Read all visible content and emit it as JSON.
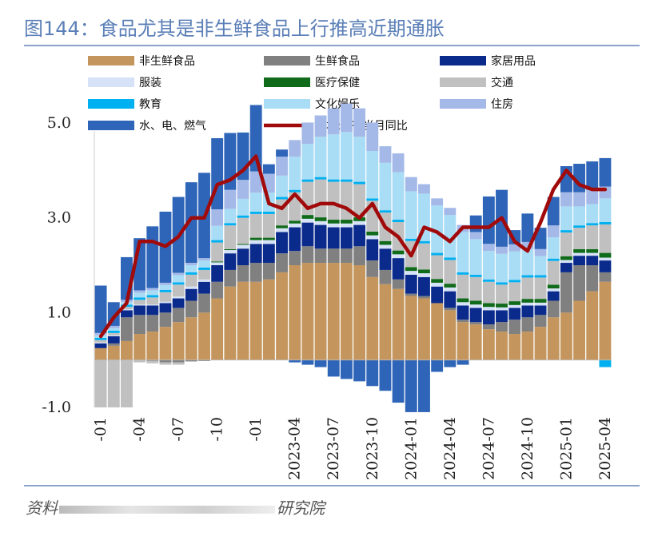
{
  "title": "图144：食品尤其是非生鲜食品上行推高近期通胀",
  "source": {
    "prefix": "资料",
    "suffix": "研究院"
  },
  "chart_data": {
    "type": "bar",
    "stacked": true,
    "ylim": [
      -1.0,
      5.0
    ],
    "yticks": [
      "5.0",
      "3.0",
      "1.0",
      "-1.0"
    ],
    "ytick_values": [
      5.0,
      3.0,
      1.0,
      -1.0
    ],
    "x": [
      "2022-01",
      "2022-02",
      "2022-03",
      "2022-04",
      "2022-05",
      "2022-06",
      "2022-07",
      "2022-08",
      "2022-09",
      "2022-10",
      "2022-11",
      "2022-12",
      "2023-01",
      "2023-02",
      "2023-03",
      "2023-04",
      "2023-05",
      "2023-06",
      "2023-07",
      "2023-08",
      "2023-09",
      "2023-10",
      "2023-11",
      "2023-12",
      "2024-01",
      "2024-02",
      "2024-03",
      "2024-04",
      "2024-05",
      "2024-06",
      "2024-07",
      "2024-08",
      "2024-09",
      "2024-10",
      "2024-11",
      "2024-12",
      "2025-01",
      "2025-02",
      "2025-03",
      "2025-04"
    ],
    "xticks": [
      {
        "i": 0,
        "label": "-01"
      },
      {
        "i": 3,
        "label": "-04"
      },
      {
        "i": 6,
        "label": "-07"
      },
      {
        "i": 9,
        "label": "-10"
      },
      {
        "i": 12,
        "label": "-01"
      },
      {
        "i": 15,
        "label": "2023-04"
      },
      {
        "i": 18,
        "label": "2023-07"
      },
      {
        "i": 21,
        "label": "2023-10"
      },
      {
        "i": 24,
        "label": "2024-01"
      },
      {
        "i": 27,
        "label": "2024-04"
      },
      {
        "i": 30,
        "label": "2024-07"
      },
      {
        "i": 33,
        "label": "2024-10"
      },
      {
        "i": 36,
        "label": "2025-01"
      },
      {
        "i": 39,
        "label": "2025-04"
      }
    ],
    "legend_position": "top",
    "series": [
      {
        "name": "非生鲜食品",
        "color": "#c4965e",
        "type": "bar",
        "values": [
          0.25,
          0.3,
          0.4,
          0.55,
          0.6,
          0.7,
          0.8,
          0.9,
          1.0,
          1.3,
          1.55,
          1.65,
          1.65,
          1.7,
          1.85,
          2.0,
          2.05,
          2.05,
          2.05,
          2.05,
          2.0,
          1.75,
          1.6,
          1.5,
          1.35,
          1.3,
          1.2,
          1.05,
          0.8,
          0.75,
          0.65,
          0.6,
          0.55,
          0.6,
          0.7,
          0.9,
          1.0,
          1.25,
          1.45,
          1.65
        ]
      },
      {
        "name": "生鲜食品",
        "color": "#808080",
        "type": "bar",
        "values": [
          0.0,
          0.05,
          0.5,
          0.4,
          0.35,
          0.3,
          0.3,
          0.35,
          0.4,
          0.35,
          0.35,
          0.35,
          0.4,
          0.35,
          0.4,
          0.3,
          0.35,
          0.3,
          0.3,
          0.3,
          0.4,
          0.35,
          0.3,
          0.2,
          0.05,
          0.05,
          0.0,
          0.05,
          0.05,
          0.05,
          0.1,
          0.2,
          0.3,
          0.3,
          0.25,
          0.35,
          0.85,
          0.75,
          0.55,
          0.2
        ]
      },
      {
        "name": "家居用品",
        "color": "#0b2b8c",
        "type": "bar",
        "values": [
          0.1,
          0.15,
          0.15,
          0.2,
          0.2,
          0.2,
          0.2,
          0.25,
          0.25,
          0.35,
          0.35,
          0.35,
          0.4,
          0.4,
          0.45,
          0.5,
          0.5,
          0.5,
          0.45,
          0.45,
          0.45,
          0.45,
          0.45,
          0.45,
          0.4,
          0.4,
          0.35,
          0.35,
          0.3,
          0.3,
          0.3,
          0.25,
          0.25,
          0.25,
          0.2,
          0.2,
          0.2,
          0.2,
          0.2,
          0.25
        ]
      },
      {
        "name": "服装",
        "color": "#d6e2f7",
        "type": "bar",
        "values": [
          0.02,
          0.02,
          0.02,
          0.02,
          0.02,
          0.03,
          0.04,
          0.05,
          0.05,
          0.06,
          0.07,
          0.08,
          0.08,
          0.08,
          0.08,
          0.08,
          0.08,
          0.08,
          0.08,
          0.08,
          0.08,
          0.08,
          0.08,
          0.08,
          0.08,
          0.08,
          0.08,
          0.08,
          0.07,
          0.07,
          0.07,
          0.06,
          0.06,
          0.06,
          0.06,
          0.06,
          0.06,
          0.06,
          0.06,
          0.06
        ]
      },
      {
        "name": "医疗保健",
        "color": "#0f6b1a",
        "type": "bar",
        "values": [
          0.0,
          0.0,
          0.0,
          0.0,
          0.0,
          0.0,
          0.0,
          0.0,
          0.0,
          0.02,
          0.02,
          0.02,
          0.05,
          0.05,
          0.06,
          0.06,
          0.08,
          0.08,
          0.08,
          0.08,
          0.08,
          0.08,
          0.08,
          0.08,
          0.08,
          0.08,
          0.08,
          0.08,
          0.08,
          0.08,
          0.08,
          0.08,
          0.08,
          0.08,
          0.08,
          0.08,
          0.08,
          0.08,
          0.08,
          0.1
        ]
      },
      {
        "name": "交通",
        "color": "#c0c0c0",
        "type": "bar",
        "values": [
          0.05,
          0.05,
          0.05,
          0.1,
          0.15,
          0.2,
          0.25,
          0.25,
          0.2,
          0.4,
          0.5,
          0.55,
          0.5,
          0.5,
          0.55,
          0.6,
          0.7,
          0.8,
          0.8,
          0.8,
          0.7,
          0.65,
          0.6,
          0.6,
          0.55,
          0.55,
          0.5,
          0.5,
          0.5,
          0.5,
          0.45,
          0.4,
          0.4,
          0.45,
          0.45,
          0.5,
          0.5,
          0.45,
          0.5,
          0.6
        ]
      },
      {
        "name": "教育",
        "color": "#00b0f0",
        "type": "bar",
        "values": [
          0.05,
          0.05,
          0.05,
          0.05,
          0.05,
          0.05,
          0.05,
          0.05,
          0.05,
          0.05,
          0.05,
          0.05,
          0.05,
          0.05,
          0.05,
          0.05,
          0.05,
          0.05,
          0.05,
          0.05,
          0.05,
          0.05,
          0.05,
          0.05,
          0.05,
          0.05,
          0.05,
          0.05,
          0.05,
          0.05,
          0.05,
          0.05,
          0.05,
          0.05,
          0.05,
          0.05,
          0.05,
          0.05,
          0.05,
          0.05
        ]
      },
      {
        "name": "文化娱乐",
        "color": "#a9dcf5",
        "type": "bar",
        "values": [
          0.05,
          0.05,
          0.05,
          0.1,
          0.1,
          0.1,
          0.15,
          0.15,
          0.15,
          0.3,
          0.3,
          0.35,
          0.4,
          0.4,
          0.45,
          0.7,
          0.75,
          0.85,
          0.95,
          1.0,
          0.95,
          1.0,
          1.0,
          1.0,
          1.0,
          1.0,
          1.0,
          0.9,
          0.85,
          0.75,
          0.6,
          0.6,
          0.6,
          0.55,
          0.4,
          0.45,
          0.5,
          0.4,
          0.4,
          0.5
        ]
      },
      {
        "name": "住房",
        "color": "#a4b9e8",
        "type": "bar",
        "values": [
          0.05,
          0.05,
          0.05,
          0.05,
          0.05,
          0.05,
          0.05,
          0.05,
          0.05,
          0.35,
          0.4,
          0.4,
          0.45,
          0.4,
          0.4,
          0.35,
          0.45,
          0.45,
          0.55,
          0.6,
          0.6,
          0.6,
          0.35,
          0.4,
          0.3,
          0.2,
          0.15,
          0.15,
          0.15,
          0.15,
          0.15,
          0.15,
          0.15,
          0.15,
          0.15,
          0.25,
          0.3,
          0.3,
          0.3,
          0.25
        ]
      },
      {
        "name": "水、电、燃气",
        "color": "#2e65b8",
        "type": "bar",
        "values": [
          1.0,
          0.5,
          0.9,
          1.1,
          1.3,
          1.5,
          1.6,
          1.7,
          1.8,
          1.5,
          1.2,
          1.0,
          1.4,
          0.2,
          0.15,
          0.0,
          -0.05,
          -0.05,
          -0.05,
          -0.05,
          -0.05,
          -0.05,
          0.0,
          0.0,
          0.0,
          0.0,
          0.0,
          0.0,
          0.0,
          0.35,
          1.0,
          1.2,
          0.3,
          0.6,
          0.45,
          0.6,
          0.55,
          0.6,
          0.6,
          0.6
        ]
      },
      {
        "name": "日本:CPI:当月同比",
        "color": "#a10a0a",
        "type": "line",
        "values": [
          0.5,
          0.9,
          1.2,
          2.5,
          2.5,
          2.4,
          2.6,
          3.0,
          3.0,
          3.7,
          3.8,
          4.0,
          4.3,
          3.3,
          3.2,
          3.5,
          3.2,
          3.3,
          3.3,
          3.2,
          3.0,
          3.3,
          2.8,
          2.6,
          2.2,
          2.8,
          2.7,
          2.5,
          2.8,
          2.8,
          2.8,
          3.0,
          2.5,
          2.3,
          2.9,
          3.6,
          4.0,
          3.7,
          3.6,
          3.6
        ]
      }
    ],
    "negatives": {
      "生鲜食品": [
        0.0,
        0.0,
        0.0,
        0.0,
        -0.02,
        -0.05,
        -0.05,
        -0.03,
        -0.02,
        0,
        0,
        0,
        0,
        0,
        0,
        0,
        0,
        0,
        0,
        0,
        0,
        0,
        0,
        0,
        0,
        0,
        0,
        0,
        0,
        0,
        0,
        0,
        0,
        0,
        0,
        0,
        0,
        0,
        0,
        0
      ],
      "交通": [
        -1.0,
        -1.0,
        -1.0,
        -0.05,
        -0.05,
        -0.05,
        -0.05,
        0,
        0,
        0,
        0,
        0,
        0,
        0,
        0,
        0,
        0,
        0,
        0,
        0,
        0,
        0,
        0,
        0,
        0,
        0,
        0,
        0,
        0,
        0,
        0,
        0,
        0,
        0,
        0,
        0,
        0,
        0,
        0,
        0
      ],
      "水、电、燃气": [
        0,
        0,
        0,
        0,
        0,
        0,
        0,
        0,
        0,
        0,
        0,
        0,
        0,
        0,
        0,
        -0.05,
        -0.1,
        -0.15,
        -0.35,
        -0.4,
        -0.45,
        -0.55,
        -0.65,
        -0.9,
        -1.1,
        -1.1,
        -0.25,
        -0.15,
        -0.1,
        0,
        0,
        0,
        0,
        0,
        0,
        0,
        0,
        0,
        0,
        0
      ],
      "教育": [
        0,
        0,
        0,
        0,
        0,
        0,
        0,
        0,
        0,
        0,
        0,
        0,
        0,
        0,
        0,
        0,
        0,
        0,
        0,
        0,
        0,
        0,
        0,
        0,
        0,
        0,
        0,
        0,
        0,
        0,
        0,
        0,
        0,
        0,
        0,
        0,
        0,
        0,
        0,
        -0.15
      ]
    }
  }
}
